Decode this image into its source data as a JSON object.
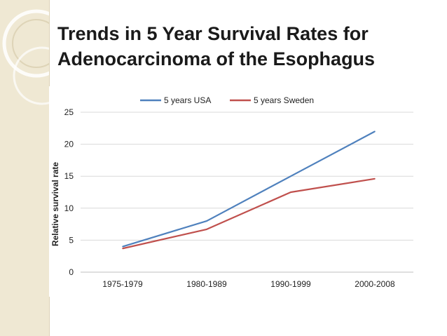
{
  "slide": {
    "title_line1": "Trends in 5 Year Survival Rates for",
    "title_line2": "Adenocarcinoma of the Esophagus",
    "theme_colors": {
      "strip": "#efe8d3",
      "title": "#1a1a1a"
    }
  },
  "chart_data": {
    "type": "line",
    "title": "",
    "xlabel": "",
    "ylabel": "Relative survival rate",
    "categories": [
      "1975-1979",
      "1980-1989",
      "1990-1999",
      "2000-2008"
    ],
    "series": [
      {
        "name": "5 years USA",
        "values": [
          4,
          8,
          15,
          22
        ],
        "color": "#4f81bd"
      },
      {
        "name": "5 years Sweden",
        "values": [
          3.7,
          6.7,
          12.5,
          14.6
        ],
        "color": "#c0504d"
      }
    ],
    "ylim": [
      0,
      25
    ],
    "yticks": [
      "0",
      "5",
      "10",
      "15",
      "20",
      "25"
    ],
    "grid": true,
    "legend_position": "top"
  }
}
